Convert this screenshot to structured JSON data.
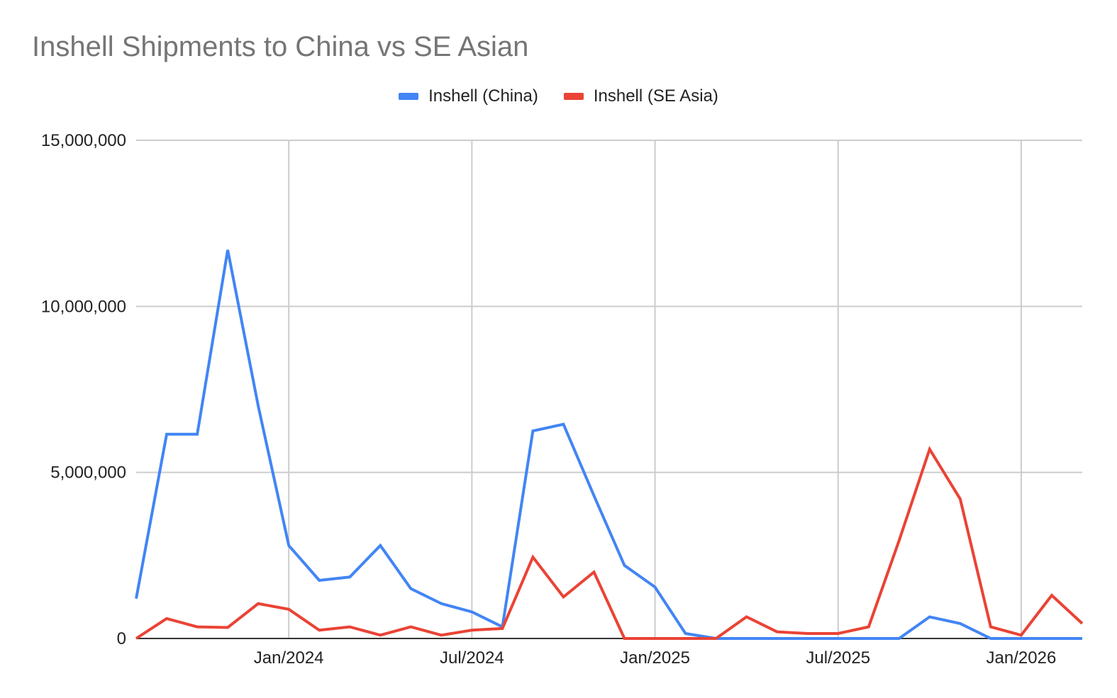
{
  "chart_data": {
    "type": "line",
    "title": "Inshell Shipments to China vs SE Asian",
    "xlabel": "",
    "ylabel": "",
    "ylim": [
      0,
      15000000
    ],
    "grid": true,
    "legend_position": "top",
    "y_ticks": [
      "15,000,000",
      "10,000,000",
      "5,000,000",
      "0"
    ],
    "x_ticks": [
      "Jan/2024",
      "Jul/2024",
      "Jan/2025",
      "Jul/2025",
      "Jan/2026"
    ],
    "x": [
      "Aug/2023",
      "Sep/2023",
      "Oct/2023",
      "Nov/2023",
      "Dec/2023",
      "Jan/2024",
      "Feb/2024",
      "Mar/2024",
      "Apr/2024",
      "May/2024",
      "Jun/2024",
      "Jul/2024",
      "Aug/2024",
      "Sep/2024",
      "Oct/2024",
      "Nov/2024",
      "Dec/2024",
      "Jan/2025",
      "Feb/2025",
      "Mar/2025",
      "Apr/2025",
      "May/2025",
      "Jun/2025",
      "Jul/2025",
      "Aug/2025",
      "Sep/2025",
      "Oct/2025",
      "Nov/2025",
      "Dec/2025",
      "Jan/2026",
      "Feb/2026",
      "Mar/2026"
    ],
    "series": [
      {
        "name": "Inshell (China)",
        "color": "#4285F4",
        "values": [
          1200000,
          6150000,
          6150000,
          11700000,
          7000000,
          2800000,
          1750000,
          1850000,
          2800000,
          1500000,
          1050000,
          800000,
          350000,
          6250000,
          6450000,
          4300000,
          2200000,
          1550000,
          150000,
          0,
          0,
          0,
          0,
          0,
          0,
          0,
          650000,
          450000,
          0,
          0,
          0,
          0
        ]
      },
      {
        "name": "Inshell (SE Asia)",
        "color": "#EA4335",
        "values": [
          0,
          600000,
          350000,
          330000,
          1050000,
          880000,
          250000,
          350000,
          100000,
          350000,
          100000,
          250000,
          300000,
          2450000,
          1250000,
          2000000,
          0,
          0,
          0,
          0,
          650000,
          200000,
          150000,
          150000,
          350000,
          2950000,
          5700000,
          4200000,
          350000,
          100000,
          1300000,
          450000
        ]
      }
    ]
  },
  "legend": {
    "items": [
      {
        "label": "Inshell (China)"
      },
      {
        "label": "Inshell (SE Asia)"
      }
    ]
  }
}
